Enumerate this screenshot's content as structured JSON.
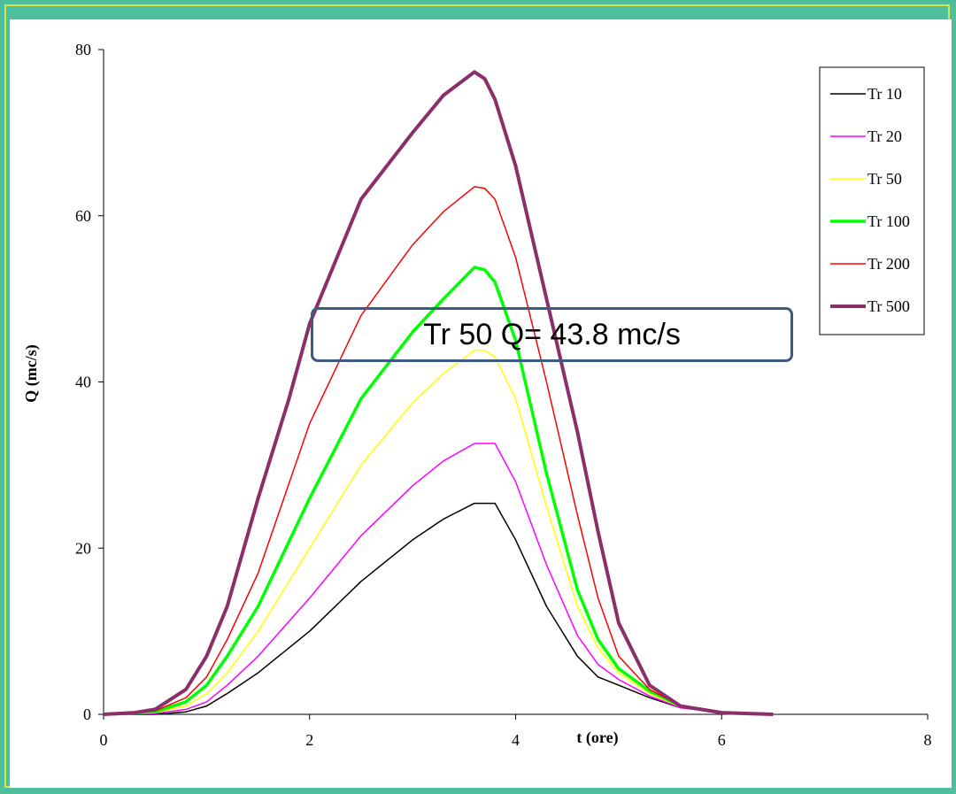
{
  "chart_data": {
    "type": "line",
    "title": "",
    "xlabel": "t (ore)",
    "ylabel": "Q (mc/s)",
    "xlim": [
      0,
      8
    ],
    "ylim": [
      0,
      80
    ],
    "xticks": [
      0,
      2,
      4,
      6,
      8
    ],
    "yticks": [
      0,
      20,
      40,
      60,
      80
    ],
    "grid": false,
    "legend_position": "top-right",
    "annotation": "Tr 50  Q= 43.8 mc/s",
    "series": [
      {
        "name": "Tr 10",
        "color": "#000000",
        "width": 1.5,
        "x": [
          0,
          0.5,
          0.8,
          1.0,
          1.2,
          1.5,
          2.0,
          2.5,
          3.0,
          3.3,
          3.6,
          3.8,
          4.0,
          4.3,
          4.6,
          4.8,
          5.0,
          5.3,
          5.6,
          6.0,
          6.5
        ],
        "y": [
          0,
          0,
          0.3,
          1.0,
          2.5,
          5.0,
          10.0,
          16.0,
          21.0,
          23.5,
          25.4,
          25.4,
          21.0,
          13.0,
          7.0,
          4.5,
          3.5,
          2.0,
          0.8,
          0.2,
          0
        ]
      },
      {
        "name": "Tr 20",
        "color": "#ff00ff",
        "width": 1.5,
        "x": [
          0,
          0.5,
          0.8,
          1.0,
          1.2,
          1.5,
          2.0,
          2.5,
          3.0,
          3.3,
          3.6,
          3.8,
          4.0,
          4.3,
          4.6,
          4.8,
          5.0,
          5.3,
          5.6,
          6.0,
          6.5
        ],
        "y": [
          0,
          0.1,
          0.6,
          1.5,
          3.5,
          7.0,
          14.0,
          21.5,
          27.5,
          30.5,
          32.6,
          32.6,
          28.0,
          18.0,
          9.5,
          6.0,
          4.2,
          2.2,
          0.8,
          0.2,
          0
        ]
      },
      {
        "name": "Tr 50",
        "color": "#ffff00",
        "width": 1.5,
        "x": [
          0,
          0.5,
          0.8,
          1.0,
          1.2,
          1.5,
          2.0,
          2.5,
          3.0,
          3.3,
          3.6,
          3.7,
          3.8,
          4.0,
          4.3,
          4.6,
          4.8,
          5.0,
          5.3,
          5.6,
          6.0,
          6.5
        ],
        "y": [
          0,
          0.2,
          1.0,
          2.5,
          5.0,
          10.0,
          20.0,
          30.0,
          37.5,
          41.0,
          43.8,
          43.8,
          43.0,
          38.0,
          25.0,
          13.0,
          8.0,
          5.0,
          2.5,
          0.9,
          0.2,
          0
        ]
      },
      {
        "name": "Tr 100",
        "color": "#00ff00",
        "width": 3.5,
        "x": [
          0,
          0.5,
          0.8,
          1.0,
          1.2,
          1.5,
          2.0,
          2.5,
          3.0,
          3.3,
          3.6,
          3.7,
          3.8,
          4.0,
          4.3,
          4.6,
          4.8,
          5.0,
          5.3,
          5.6,
          6.0,
          6.5
        ],
        "y": [
          0,
          0.3,
          1.5,
          3.5,
          7.0,
          13.0,
          26.0,
          38.0,
          46.0,
          50.0,
          53.8,
          53.5,
          52.0,
          45.0,
          29.0,
          15.0,
          9.0,
          5.5,
          2.8,
          1.0,
          0.2,
          0
        ]
      },
      {
        "name": "Tr 200",
        "color": "#ff0000",
        "width": 1.5,
        "x": [
          0,
          0.5,
          0.8,
          1.0,
          1.2,
          1.5,
          2.0,
          2.5,
          3.0,
          3.3,
          3.6,
          3.7,
          3.8,
          4.0,
          4.3,
          4.6,
          4.8,
          5.0,
          5.3,
          5.6,
          6.0,
          6.5
        ],
        "y": [
          0,
          0.4,
          2.0,
          4.5,
          9.0,
          17.0,
          35.0,
          48.0,
          56.5,
          60.5,
          63.5,
          63.3,
          62.0,
          55.0,
          40.0,
          24.0,
          14.0,
          7.0,
          3.0,
          1.0,
          0.2,
          0
        ]
      },
      {
        "name": "Tr 500",
        "color": "#8b2f6b",
        "width": 4,
        "x": [
          0,
          0.3,
          0.5,
          0.8,
          1.0,
          1.2,
          1.5,
          1.8,
          2.0,
          2.5,
          3.0,
          3.3,
          3.6,
          3.7,
          3.8,
          4.0,
          4.3,
          4.6,
          4.8,
          5.0,
          5.3,
          5.6,
          6.0,
          6.5
        ],
        "y": [
          0,
          0.2,
          0.6,
          3.0,
          7.0,
          13.0,
          26.0,
          38.0,
          47.0,
          62.0,
          70.0,
          74.5,
          77.3,
          76.5,
          74.0,
          66.0,
          50.0,
          34.0,
          22.0,
          11.0,
          3.5,
          1.0,
          0.2,
          0
        ]
      }
    ]
  }
}
